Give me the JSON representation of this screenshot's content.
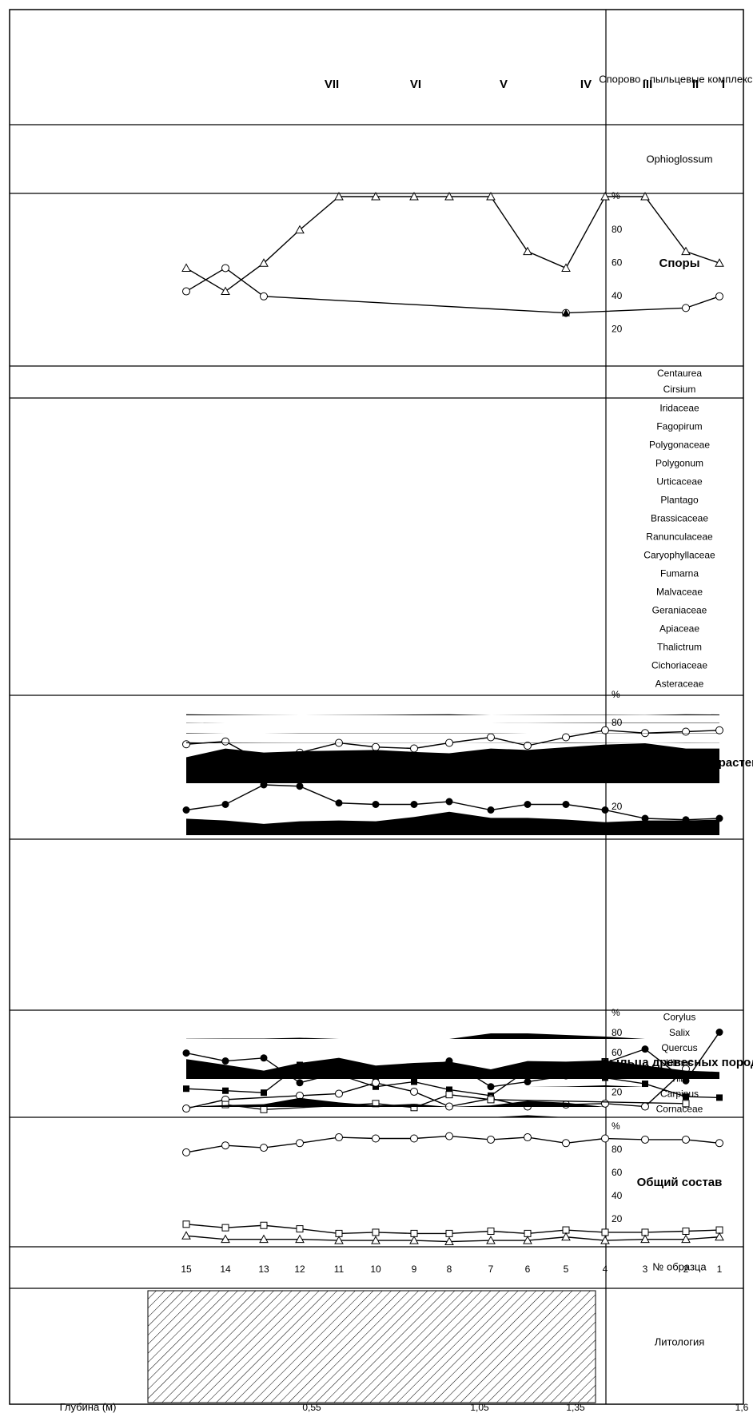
{
  "depth_axis": {
    "title": "Глубина (м)",
    "ticks": [
      "0,55",
      "1,05",
      "1,35",
      "1,6"
    ]
  },
  "columns": {
    "lithology": "Литология",
    "sample": "№ образца",
    "general": "Общий состав",
    "trees": "Пыльца древесных пород",
    "herbs": "Пыльца травянистых растений",
    "spores": "Споры",
    "spc": "Спорово - пыльцевые комплексы"
  },
  "samples": [
    "1",
    "2",
    "3",
    "4",
    "5",
    "6",
    "7",
    "8",
    "9",
    "10",
    "11",
    "12",
    "13",
    "14",
    "15"
  ],
  "complexes": [
    "I",
    "II",
    "III",
    "IV",
    "V",
    "VI",
    "VII"
  ],
  "axis_ticks_pct": [
    "20",
    "40",
    "60",
    "80",
    "%"
  ],
  "small_tick": "10",
  "taxa_tree": [
    "Corylus",
    "Salix",
    "Quercus",
    "Ulmus",
    "Tilia",
    "Carpinus",
    "Cornaceae"
  ],
  "taxa_herb": [
    "Iridaceae",
    "Fagopirum",
    "Polygonaceae",
    "Polygonum",
    "Urticaceae",
    "Plantago",
    "Brassicaceae",
    "Ranunculaceae",
    "Caryophyllaceae",
    "Fumarna",
    "Malvaceae",
    "Geraniaceae",
    "Apiaceae",
    "Thalictrum",
    "Cichoriaceae",
    "Asteraceae"
  ],
  "taxa_spore": [
    "Centaurea",
    "Cirsium"
  ],
  "taxa_oph": [
    "Ophioglossum"
  ],
  "chart_data": {
    "type": "line",
    "x_label": "Глубина (м)",
    "x": [
      "1",
      "2",
      "3",
      "4",
      "5",
      "6",
      "7",
      "8",
      "9",
      "10",
      "11",
      "12",
      "13",
      "14",
      "15"
    ],
    "general": {
      "circle": [
        86,
        89,
        89,
        90,
        86,
        91,
        89,
        92,
        90,
        90,
        91,
        86,
        82,
        84,
        78
      ],
      "square": [
        11,
        10,
        9,
        9,
        11,
        8,
        10,
        8,
        8,
        9,
        8,
        12,
        15,
        13,
        16
      ],
      "triangle": [
        5,
        3,
        3,
        2,
        5,
        2,
        2,
        1,
        2,
        2,
        2,
        3,
        3,
        3,
        6
      ]
    },
    "trees": {
      "filled_circle": [
        81,
        32,
        64,
        50,
        37,
        31,
        26,
        52,
        42,
        35,
        40,
        30,
        55,
        52,
        60
      ],
      "filled_square": [
        15,
        16,
        29,
        35,
        40,
        43,
        17,
        23,
        31,
        26,
        38,
        48,
        20,
        22,
        24
      ],
      "open_circle": [
        null,
        44,
        6,
        9,
        8,
        6,
        14,
        6,
        21,
        30,
        19,
        17,
        null,
        13,
        4
      ],
      "open_square": [
        null,
        9,
        null,
        null,
        null,
        null,
        13,
        18,
        5,
        9,
        null,
        null,
        3,
        8,
        null
      ]
    },
    "herbs": {
      "cross_circle": [
        75,
        74,
        73,
        75,
        70,
        64,
        70,
        66,
        62,
        63,
        66,
        59,
        52,
        67,
        65
      ],
      "half_circle": [
        12,
        11,
        12,
        18,
        22,
        22,
        18,
        24,
        22,
        22,
        23,
        35,
        36,
        22,
        18
      ]
    },
    "spores": {
      "open_triangle": [
        60,
        67,
        100,
        100,
        57,
        67,
        100,
        100,
        100,
        100,
        100,
        80,
        60,
        43,
        57
      ],
      "moon": [
        40,
        33,
        null,
        null,
        30,
        null,
        null,
        null,
        null,
        null,
        null,
        null,
        40,
        57,
        43
      ],
      "filled_triangle": [
        null,
        null,
        null,
        null,
        30,
        null,
        null,
        null,
        null,
        null,
        null,
        null,
        null,
        null,
        null
      ]
    },
    "tree_taxa": {
      "Corylus": [
        0,
        0,
        0,
        6,
        10,
        14,
        14,
        0,
        0,
        0,
        0,
        3,
        1,
        1,
        0.5
      ],
      "Salix": [
        0,
        0,
        0,
        0,
        0,
        0,
        0,
        0,
        0,
        0,
        0,
        0,
        0,
        0,
        0
      ],
      "Quercus": [
        11,
        13,
        21,
        29,
        27,
        28,
        15,
        27,
        25,
        21,
        33,
        25,
        13,
        22,
        31
      ],
      "Ulmus": [
        0,
        0,
        0,
        8,
        2,
        0,
        0,
        0,
        0,
        0,
        0,
        0,
        0,
        0,
        0
      ],
      "Tilia": [
        0,
        0,
        0,
        0,
        0,
        0,
        0,
        0,
        0,
        0,
        0,
        0,
        0,
        0,
        0
      ],
      "Carpinus": [
        0,
        0,
        0,
        0,
        14,
        20,
        5,
        0,
        10,
        5,
        15,
        30,
        9,
        6,
        0
      ],
      "Cornaceae": [
        0,
        0,
        0,
        0,
        0,
        8,
        0,
        0,
        0,
        0,
        0,
        0,
        0,
        0,
        0
      ]
    },
    "herb_taxa": {
      "Polygonaceae": [
        4,
        5,
        1,
        2,
        2,
        1,
        0,
        5,
        4,
        2,
        1,
        0,
        1,
        3,
        5
      ],
      "Polygonum": [
        3,
        3,
        3,
        3,
        2,
        1,
        0,
        0,
        0,
        0,
        0,
        0,
        0,
        0,
        2
      ],
      "Brassicaceae": [
        2,
        2,
        2,
        2,
        0,
        0,
        2,
        2,
        2,
        2,
        2,
        2,
        0,
        0,
        3
      ],
      "Apiaceae": [
        1,
        2,
        0,
        2,
        3,
        2,
        1,
        0,
        1,
        1,
        1,
        1,
        2,
        3,
        6
      ],
      "Cichoriaceae": [
        52,
        52,
        60,
        58,
        54,
        50,
        52,
        45,
        47,
        50,
        49,
        48,
        46,
        52,
        39
      ],
      "Asteraceae": [
        18,
        17,
        17,
        15,
        18,
        20,
        20,
        27,
        21,
        16,
        17,
        16,
        13,
        17,
        19
      ]
    }
  }
}
